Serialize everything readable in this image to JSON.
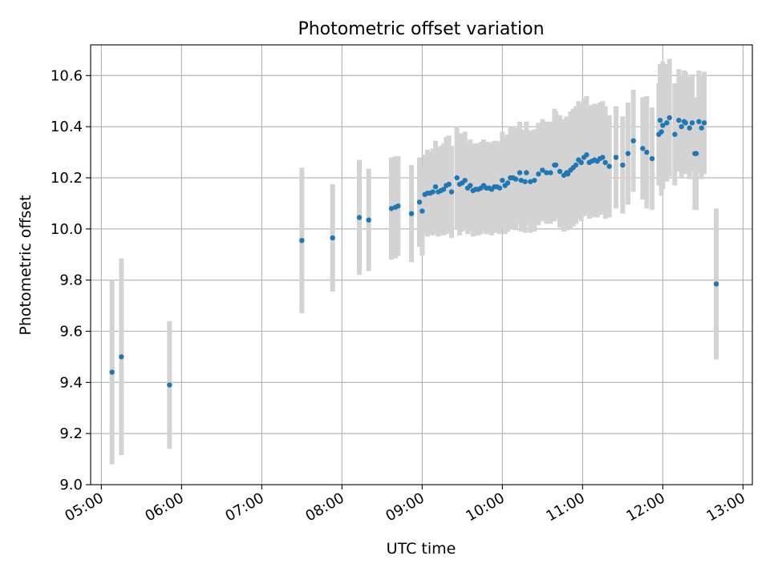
{
  "chart_data": {
    "type": "scatter",
    "title": "Photometric offset variation",
    "xlabel": "UTC time",
    "ylabel": "Photometric offset",
    "x_type": "time",
    "xlim": [
      "04:52",
      "13:07"
    ],
    "ylim": [
      9.0,
      10.72
    ],
    "x_ticks": [
      "05:00",
      "06:00",
      "07:00",
      "08:00",
      "09:00",
      "10:00",
      "11:00",
      "12:00",
      "13:00"
    ],
    "y_ticks": [
      "9.0",
      "9.2",
      "9.4",
      "9.6",
      "9.8",
      "10.0",
      "10.2",
      "10.4",
      "10.6"
    ],
    "grid": true,
    "point_color": "#1f77b4",
    "errorbar_color": "#d3d3d3",
    "series": [
      {
        "x": [
          "05:08",
          "05:15",
          "05:51",
          "07:30",
          "07:53",
          "08:13",
          "08:20",
          "08:37",
          "08:40",
          "08:42",
          "08:52",
          "08:58",
          "09:00",
          "09:02",
          "09:04",
          "09:06",
          "09:08",
          "09:10",
          "09:12",
          "09:14",
          "09:16",
          "09:18",
          "09:20",
          "09:22",
          "09:26",
          "09:28",
          "09:30",
          "09:32",
          "09:34",
          "09:36",
          "09:38",
          "09:40",
          "09:42",
          "09:44",
          "09:46",
          "09:48",
          "09:50",
          "09:52",
          "09:54",
          "09:56",
          "09:58",
          "10:00",
          "10:02",
          "10:04",
          "10:06",
          "10:08",
          "10:10",
          "10:13",
          "10:14",
          "10:17",
          "10:18",
          "10:21",
          "10:24",
          "10:27",
          "10:30",
          "10:33",
          "10:36",
          "10:39",
          "10:40",
          "10:43",
          "10:46",
          "10:48",
          "10:49",
          "10:51",
          "10:53",
          "10:55",
          "10:57",
          "10:59",
          "11:01",
          "11:03",
          "11:05",
          "11:07",
          "11:09",
          "11:11",
          "11:13",
          "11:15",
          "11:17",
          "11:20",
          "11:25",
          "11:30",
          "11:34",
          "11:38",
          "11:45",
          "11:48",
          "11:52",
          "11:57",
          "11:58",
          "11:59",
          "12:00",
          "12:03",
          "12:05",
          "12:09",
          "12:12",
          "12:14",
          "12:16",
          "12:17",
          "12:20",
          "12:22",
          "12:24",
          "12:25",
          "12:27",
          "12:29",
          "12:31",
          "12:40"
        ],
        "y": [
          9.44,
          9.5,
          9.39,
          9.955,
          9.965,
          10.045,
          10.035,
          10.08,
          10.085,
          10.09,
          10.06,
          10.105,
          10.07,
          10.135,
          10.14,
          10.14,
          10.145,
          10.165,
          10.145,
          10.15,
          10.155,
          10.17,
          10.175,
          10.145,
          10.2,
          10.175,
          10.18,
          10.19,
          10.16,
          10.17,
          10.15,
          10.155,
          10.155,
          10.16,
          10.17,
          10.16,
          10.16,
          10.155,
          10.165,
          10.165,
          10.16,
          10.19,
          10.17,
          10.18,
          10.2,
          10.2,
          10.195,
          10.22,
          10.19,
          10.185,
          10.22,
          10.185,
          10.19,
          10.215,
          10.23,
          10.22,
          10.22,
          10.25,
          10.25,
          10.225,
          10.21,
          10.22,
          10.215,
          10.23,
          10.24,
          10.25,
          10.27,
          10.26,
          10.28,
          10.29,
          10.26,
          10.265,
          10.27,
          10.265,
          10.275,
          10.28,
          10.26,
          10.245,
          10.28,
          10.25,
          10.295,
          10.345,
          10.315,
          10.3,
          10.275,
          10.37,
          10.425,
          10.38,
          10.405,
          10.415,
          10.435,
          10.37,
          10.425,
          10.4,
          10.42,
          10.415,
          10.395,
          10.415,
          10.295,
          10.295,
          10.42,
          10.395,
          10.415,
          9.785
        ],
        "err": [
          0.36,
          0.385,
          0.25,
          0.285,
          0.21,
          0.225,
          0.2,
          0.2,
          0.2,
          0.195,
          0.19,
          0.175,
          0.175,
          0.155,
          0.17,
          0.16,
          0.17,
          0.18,
          0.175,
          0.175,
          0.18,
          0.19,
          0.19,
          0.18,
          0.2,
          0.2,
          0.19,
          0.19,
          0.18,
          0.18,
          0.18,
          0.18,
          0.18,
          0.18,
          0.18,
          0.18,
          0.18,
          0.18,
          0.18,
          0.18,
          0.18,
          0.19,
          0.19,
          0.19,
          0.2,
          0.2,
          0.2,
          0.2,
          0.2,
          0.2,
          0.2,
          0.2,
          0.2,
          0.2,
          0.2,
          0.2,
          0.2,
          0.22,
          0.21,
          0.22,
          0.22,
          0.22,
          0.22,
          0.23,
          0.23,
          0.23,
          0.23,
          0.23,
          0.23,
          0.23,
          0.22,
          0.22,
          0.22,
          0.22,
          0.22,
          0.22,
          0.22,
          0.2,
          0.2,
          0.19,
          0.2,
          0.2,
          0.2,
          0.22,
          0.2,
          0.2,
          0.22,
          0.25,
          0.25,
          0.23,
          0.23,
          0.2,
          0.2,
          0.2,
          0.2,
          0.2,
          0.2,
          0.19,
          0.22,
          0.22,
          0.2,
          0.2,
          0.2,
          0.295
        ]
      }
    ]
  }
}
